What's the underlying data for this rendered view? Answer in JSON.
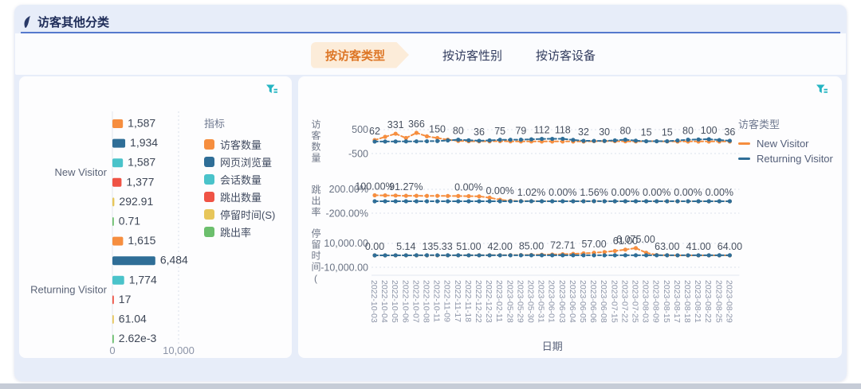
{
  "header": {
    "title": "访客其他分类",
    "icon": "leaf-bookmark-icon"
  },
  "tabs": [
    {
      "label": "按访客类型",
      "active": true
    },
    {
      "label": "按访客性别",
      "active": false
    },
    {
      "label": "按访客设备",
      "active": false
    }
  ],
  "icons": {
    "panel_tool": "filter-icon"
  },
  "colors": {
    "accent_orange": "#f68e3f",
    "steel_blue": "#2f6e97",
    "teal": "#4ac3ca",
    "red": "#ef5345",
    "yellow": "#e7c65a",
    "green": "#6cbf6d",
    "card_bg": "#e7edf9",
    "active_tab_text": "#dd7626"
  },
  "chart_data": [
    {
      "id": "metrics_bar",
      "type": "bar",
      "orientation": "horizontal",
      "legend_title": "指标",
      "categories": [
        "New Visitor",
        "Returning Visitor"
      ],
      "xlim": [
        0,
        10000
      ],
      "x_ticks": [
        "0",
        "10,000"
      ],
      "series": [
        {
          "name": "访客数量",
          "color": "#f68e3f",
          "values": [
            1587,
            1615
          ],
          "labels": [
            "1,587",
            "1,615"
          ]
        },
        {
          "name": "网页浏览量",
          "color": "#2f6e97",
          "values": [
            1934,
            6484
          ],
          "labels": [
            "1,934",
            "6,484"
          ]
        },
        {
          "name": "会话数量",
          "color": "#4ac3ca",
          "values": [
            1587,
            1774
          ],
          "labels": [
            "1,587",
            "1,774"
          ]
        },
        {
          "name": "跳出数量",
          "color": "#ef5345",
          "values": [
            1377,
            17
          ],
          "labels": [
            "1,377",
            "17"
          ]
        },
        {
          "name": "停留时间(S)",
          "color": "#e7c65a",
          "values": [
            292.91,
            61.04
          ],
          "labels": [
            "292.91",
            "61.04"
          ]
        },
        {
          "name": "跳出率",
          "color": "#6cbf6d",
          "values": [
            0.71,
            0.00262
          ],
          "labels": [
            "0.71",
            "2.62e-3"
          ]
        }
      ]
    },
    {
      "id": "trend_lines",
      "type": "line",
      "legend_title": "访客类型",
      "x_label": "日期",
      "x": [
        "2022-10-03",
        "2022-10-04",
        "2022-10-05",
        "2022-10-06",
        "2022-10-07",
        "2022-10-08",
        "2022-10-11",
        "2022-11-09",
        "2022-11-17",
        "2022-11-18",
        "2022-12-22",
        "2022-12-23",
        "2023-02-11",
        "2023-05-28",
        "2023-05-29",
        "2023-05-30",
        "2023-05-31",
        "2023-06-01",
        "2023-06-03",
        "2023-06-04",
        "2023-06-05",
        "2023-06-06",
        "2023-06-08",
        "2023-07-15",
        "2023-07-22",
        "2023-07-25",
        "2023-08-03",
        "2023-08-09",
        "2023-08-15",
        "2023-08-17",
        "2023-08-18",
        "2023-08-21",
        "2023-08-22",
        "2023-08-25",
        "2023-08-29"
      ],
      "panels": [
        {
          "ylabel": "访客数量",
          "ymax": 500,
          "ticks": [
            "500",
            "-500"
          ],
          "series": [
            {
              "name": "New Visitor",
              "color": "#f68e3f",
              "values": [
                62,
                200,
                331,
                150,
                366,
                220,
                150,
                80,
                30,
                15,
                10,
                12,
                20,
                10,
                8,
                6,
                5,
                5,
                5,
                5,
                5,
                18,
                25,
                18,
                10,
                8,
                15,
                15,
                8,
                5,
                5,
                5,
                5,
                5,
                5
              ]
            },
            {
              "name": "Returning Visitor",
              "color": "#2f6e97",
              "values": [
                2,
                3,
                5,
                8,
                10,
                15,
                25,
                50,
                80,
                55,
                36,
                50,
                75,
                77,
                79,
                95,
                112,
                115,
                118,
                70,
                32,
                31,
                30,
                50,
                80,
                40,
                15,
                15,
                15,
                45,
                80,
                90,
                100,
                65,
                36
              ]
            }
          ],
          "point_labels": [
            {
              "i": 0,
              "text": "62"
            },
            {
              "i": 2,
              "text": "331"
            },
            {
              "i": 4,
              "text": "366"
            },
            {
              "i": 6,
              "text": "150"
            },
            {
              "i": 8,
              "text": "80"
            },
            {
              "i": 10,
              "text": "36"
            },
            {
              "i": 12,
              "text": "75"
            },
            {
              "i": 14,
              "text": "79"
            },
            {
              "i": 16,
              "text": "112"
            },
            {
              "i": 18,
              "text": "118"
            },
            {
              "i": 20,
              "text": "32"
            },
            {
              "i": 22,
              "text": "30"
            },
            {
              "i": 24,
              "text": "80"
            },
            {
              "i": 26,
              "text": "15"
            },
            {
              "i": 28,
              "text": "15"
            },
            {
              "i": 30,
              "text": "80"
            },
            {
              "i": 32,
              "text": "100"
            },
            {
              "i": 34,
              "text": "36"
            }
          ]
        },
        {
          "ylabel": "跳出率",
          "ymax": 200,
          "ticks": [
            "200.00%",
            "-200.00%"
          ],
          "series": [
            {
              "name": "New Visitor",
              "color": "#f68e3f",
              "values": [
                100,
                98,
                96,
                91.27,
                92,
                90,
                91,
                89,
                88,
                86,
                82,
                60,
                25,
                8,
                3,
                2,
                1,
                1,
                1,
                1,
                1,
                1,
                1,
                0,
                0,
                0,
                0,
                0,
                0,
                0,
                0,
                0,
                0,
                0,
                0
              ]
            },
            {
              "name": "Returning Visitor",
              "color": "#2f6e97",
              "values": [
                0,
                0,
                0,
                0,
                0,
                0,
                0,
                0,
                0,
                0,
                0,
                0,
                0,
                0,
                0,
                1.02,
                0,
                0,
                0,
                0,
                0,
                1.56,
                0,
                0,
                0,
                0,
                0,
                0,
                0,
                0,
                0,
                0,
                0,
                0,
                0
              ]
            }
          ],
          "point_labels": [
            {
              "i": 0,
              "text": "100.00%"
            },
            {
              "i": 3,
              "text": "91.27%"
            },
            {
              "i": 9,
              "text": "0.00%"
            },
            {
              "i": 12,
              "text": "0.00%"
            },
            {
              "i": 15,
              "text": "1.02%"
            },
            {
              "i": 18,
              "text": "0.00%"
            },
            {
              "i": 21,
              "text": "1.56%"
            },
            {
              "i": 24,
              "text": "0.00%"
            },
            {
              "i": 27,
              "text": "0.00%"
            },
            {
              "i": 30,
              "text": "0.00%"
            },
            {
              "i": 33,
              "text": "0.00%"
            }
          ]
        },
        {
          "ylabel": "停留时间(",
          "ymax": 10000,
          "ticks": [
            "10,000.00",
            "-10,000.00"
          ],
          "series": [
            {
              "name": "New Visitor",
              "color": "#f68e3f",
              "values": [
                0,
                1,
                3,
                5.14,
                8,
                12,
                18,
                25,
                35,
                50,
                70,
                100,
                140,
                200,
                280,
                380,
                520,
                700,
                950,
                1250,
                1650,
                2150,
                2800,
                3700,
                4800,
                6075,
                2200,
                300,
                63,
                25,
                12,
                8,
                6,
                5,
                5
              ]
            },
            {
              "name": "Returning Visitor",
              "color": "#2f6e97",
              "values": [
                10,
                15,
                40,
                30,
                60,
                100,
                135.33,
                90,
                60,
                51,
                45,
                42,
                42,
                50,
                60,
                85,
                75,
                73,
                72.71,
                65,
                57,
                57,
                58,
                60,
                61,
                62,
                62,
                63,
                63,
                50,
                45,
                41,
                50,
                60,
                64
              ]
            }
          ],
          "point_labels": [
            {
              "i": 0,
              "text": "0.00"
            },
            {
              "i": 3,
              "text": "5.14"
            },
            {
              "i": 6,
              "text": "135.33"
            },
            {
              "i": 9,
              "text": "51.00"
            },
            {
              "i": 12,
              "text": "42.00"
            },
            {
              "i": 15,
              "text": "85.00"
            },
            {
              "i": 18,
              "text": "72.71"
            },
            {
              "i": 21,
              "text": "57.00"
            },
            {
              "i": 24,
              "text": "61.00"
            },
            {
              "i": 25,
              "text": "6,075.00",
              "raised": true
            },
            {
              "i": 28,
              "text": "63.00"
            },
            {
              "i": 31,
              "text": "41.00"
            },
            {
              "i": 34,
              "text": "64.00"
            }
          ]
        }
      ]
    }
  ]
}
